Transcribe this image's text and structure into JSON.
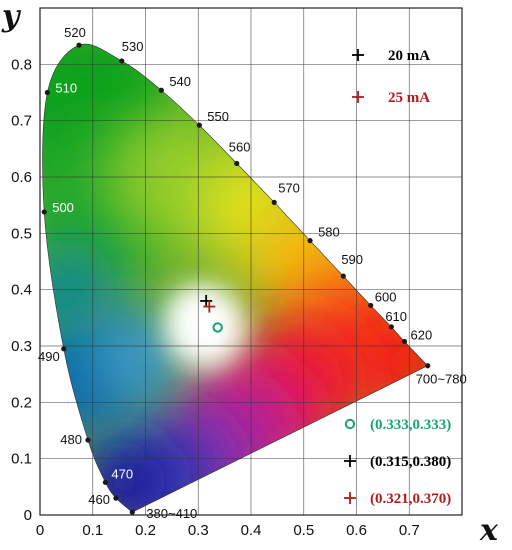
{
  "chart_data": {
    "type": "scatter",
    "xlabel": "x",
    "ylabel": "y",
    "xlim": [
      0,
      0.8
    ],
    "ylim": [
      0,
      0.9
    ],
    "x_ticks": [
      "0",
      "0.1",
      "0.2",
      "0.3",
      "0.4",
      "0.5",
      "0.6",
      "0.7"
    ],
    "y_ticks": [
      "0",
      "0.1",
      "0.2",
      "0.3",
      "0.4",
      "0.5",
      "0.6",
      "0.7",
      "0.8"
    ],
    "grid": true,
    "legend_position": "top-right",
    "spectral_locus": [
      {
        "label": "380~410",
        "x": 0.175,
        "y": 0.005
      },
      {
        "label": "460",
        "x": 0.144,
        "y": 0.03
      },
      {
        "label": "470",
        "x": 0.124,
        "y": 0.058
      },
      {
        "label": "480",
        "x": 0.091,
        "y": 0.133
      },
      {
        "label": "490",
        "x": 0.045,
        "y": 0.295
      },
      {
        "label": "500",
        "x": 0.008,
        "y": 0.538
      },
      {
        "label": "510",
        "x": 0.014,
        "y": 0.75
      },
      {
        "label": "520",
        "x": 0.074,
        "y": 0.834
      },
      {
        "label": "530",
        "x": 0.155,
        "y": 0.806
      },
      {
        "label": "540",
        "x": 0.23,
        "y": 0.754
      },
      {
        "label": "550",
        "x": 0.302,
        "y": 0.692
      },
      {
        "label": "560",
        "x": 0.373,
        "y": 0.624
      },
      {
        "label": "570",
        "x": 0.444,
        "y": 0.555
      },
      {
        "label": "580",
        "x": 0.512,
        "y": 0.487
      },
      {
        "label": "590",
        "x": 0.575,
        "y": 0.424
      },
      {
        "label": "600",
        "x": 0.627,
        "y": 0.372
      },
      {
        "label": "610",
        "x": 0.666,
        "y": 0.334
      },
      {
        "label": "620",
        "x": 0.691,
        "y": 0.308
      },
      {
        "label": "700~780",
        "x": 0.735,
        "y": 0.265
      }
    ],
    "series": [
      {
        "name": "20 mA",
        "marker": "cross",
        "color": "#000000",
        "x": 0.315,
        "y": 0.38
      },
      {
        "name": "25 mA",
        "marker": "cross",
        "color": "#b01c1c",
        "x": 0.321,
        "y": 0.37
      }
    ],
    "reference_point": {
      "marker": "circle",
      "color": "#18a37a",
      "x": 0.333,
      "y": 0.333
    },
    "annotations": [
      {
        "text": "(0.333,0.333)",
        "color": "#18a37a",
        "marker": "circle"
      },
      {
        "text": "(0.315,0.380)",
        "color": "#000000",
        "marker": "cross"
      },
      {
        "text": "(0.321,0.370)",
        "color": "#b01c1c",
        "marker": "cross"
      }
    ]
  }
}
